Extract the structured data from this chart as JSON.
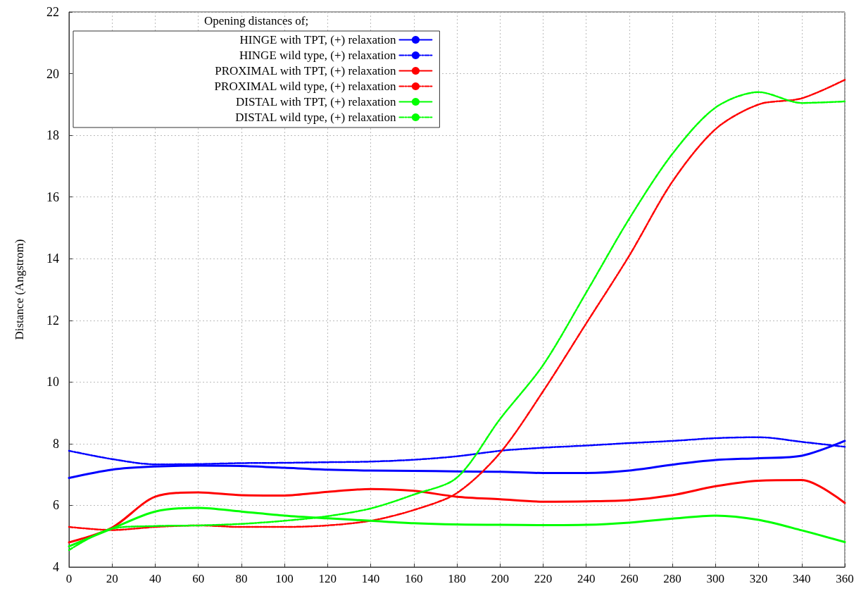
{
  "chart_data": {
    "type": "line",
    "ylabel": "Distance (Angstrom)",
    "legend_title": "Opening distances of;",
    "x": [
      0,
      20,
      40,
      60,
      80,
      100,
      120,
      140,
      160,
      180,
      200,
      220,
      240,
      260,
      280,
      300,
      320,
      340,
      360
    ],
    "series": [
      {
        "name": "HINGE with TPT, (+) relaxation",
        "color": "#0000ff",
        "line_style": "solid",
        "values": [
          6.89,
          7.16,
          7.26,
          7.29,
          7.28,
          7.22,
          7.16,
          7.13,
          7.12,
          7.1,
          7.09,
          7.05,
          7.05,
          7.13,
          7.32,
          7.47,
          7.53,
          7.61,
          8.09
        ]
      },
      {
        "name": "HINGE wild type, (+) relaxation",
        "color": "#0000ff",
        "line_style": "dashed",
        "values": [
          7.77,
          7.5,
          7.33,
          7.34,
          7.37,
          7.38,
          7.4,
          7.42,
          7.48,
          7.59,
          7.77,
          7.87,
          7.94,
          8.02,
          8.09,
          8.18,
          8.21,
          8.06,
          7.9
        ]
      },
      {
        "name": "PROXIMAL with TPT, (+) relaxation",
        "color": "#ff0000",
        "line_style": "solid",
        "values": [
          4.8,
          5.28,
          6.28,
          6.42,
          6.33,
          6.32,
          6.44,
          6.53,
          6.47,
          6.28,
          6.2,
          6.12,
          6.13,
          6.17,
          6.33,
          6.62,
          6.8,
          6.82,
          6.08
        ]
      },
      {
        "name": "PROXIMAL wild type, (+) relaxation",
        "color": "#ff0000",
        "line_style": "dashed",
        "values": [
          5.3,
          5.2,
          5.3,
          5.35,
          5.3,
          5.3,
          5.35,
          5.5,
          5.85,
          6.4,
          7.7,
          9.7,
          11.9,
          14.1,
          16.5,
          18.2,
          19.0,
          19.2,
          19.8
        ]
      },
      {
        "name": "DISTAL with TPT, (+) relaxation",
        "color": "#00ff00",
        "line_style": "solid",
        "values": [
          4.67,
          5.25,
          5.8,
          5.92,
          5.8,
          5.67,
          5.58,
          5.5,
          5.42,
          5.38,
          5.37,
          5.36,
          5.37,
          5.44,
          5.57,
          5.67,
          5.53,
          5.19,
          4.81
        ]
      },
      {
        "name": "DISTAL wild type, (+) relaxation",
        "color": "#00ff00",
        "line_style": "dashed",
        "values": [
          4.55,
          5.25,
          5.33,
          5.35,
          5.4,
          5.5,
          5.65,
          5.9,
          6.35,
          6.9,
          8.8,
          10.55,
          12.9,
          15.3,
          17.4,
          18.9,
          19.4,
          19.05,
          19.1
        ]
      }
    ],
    "xlim": [
      0,
      360
    ],
    "xticks": [
      0,
      20,
      40,
      60,
      80,
      100,
      120,
      140,
      160,
      180,
      200,
      220,
      240,
      260,
      280,
      300,
      320,
      340,
      360
    ],
    "ylim": [
      4,
      22
    ],
    "yticks": [
      4,
      6,
      8,
      10,
      12,
      14,
      16,
      18,
      20,
      22
    ],
    "grid": true,
    "legend": "top left",
    "marker": "none"
  }
}
